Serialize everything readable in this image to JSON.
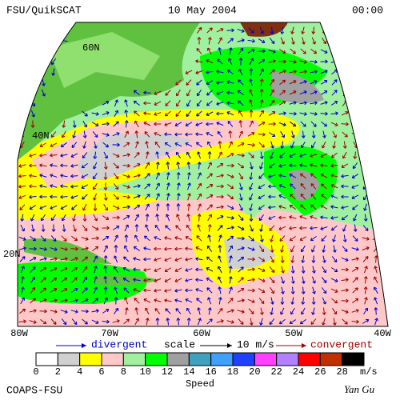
{
  "header": {
    "title": "FSU/QuikSCAT",
    "date": "10 May 2004",
    "time": "00:00"
  },
  "map": {
    "lat_labels": [
      "60N",
      "40N",
      "20N"
    ],
    "lon_labels": [
      "80W",
      "70W",
      "60W",
      "50W",
      "40W"
    ]
  },
  "legend": {
    "divergent": "divergent",
    "scale": "scale",
    "scale_value": "10 m/s",
    "convergent": "convergent"
  },
  "colorbar": {
    "colors": [
      "#ffffff",
      "#d0d0d0",
      "#ffff00",
      "#ffc8c8",
      "#a0f0a0",
      "#00ff00",
      "#a0a0a0",
      "#40a0c0",
      "#40a0ff",
      "#2040ff",
      "#ff40ff",
      "#b080ff",
      "#ff0000",
      "#c03000",
      "#000000"
    ],
    "ticks": [
      0,
      2,
      4,
      6,
      8,
      10,
      12,
      14,
      16,
      18,
      20,
      22,
      24,
      26,
      28
    ],
    "unit": "m/s",
    "label": "Speed"
  },
  "footer": {
    "institution": "COAPS-FSU",
    "author": "Yan Gu"
  }
}
